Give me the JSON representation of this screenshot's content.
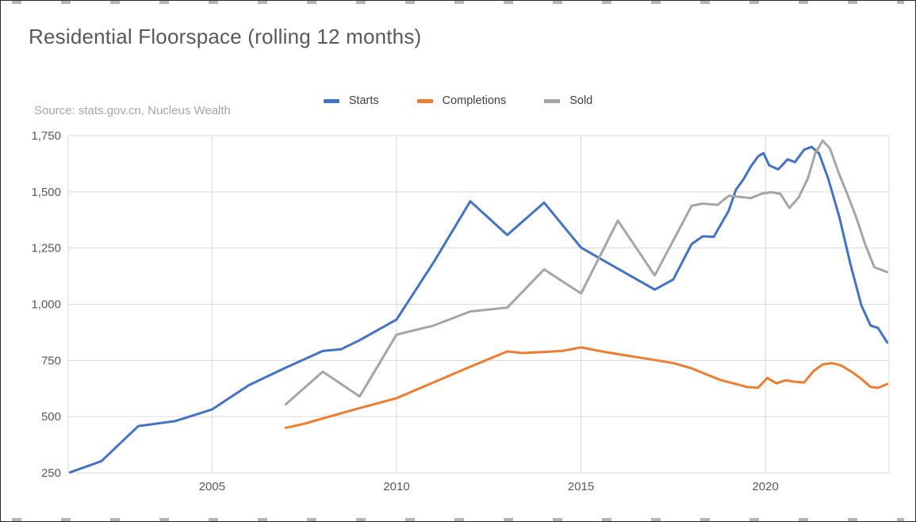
{
  "chart_data": {
    "type": "line",
    "title": "Residential Floorspace (rolling 12 months)",
    "source": "Source: stats.gov.cn, Nucleus Wealth",
    "legend_position": "top",
    "grid": true,
    "x_range": [
      2001.1,
      2023.35
    ],
    "y_range": [
      250,
      1750
    ],
    "x_ticks": [
      2005,
      2010,
      2015,
      2020
    ],
    "x_tick_labels": [
      "2005",
      "2010",
      "2015",
      "2020"
    ],
    "y_ticks": [
      250,
      500,
      750,
      1000,
      1250,
      1500,
      1750
    ],
    "y_tick_labels": [
      "250",
      "500",
      "750",
      "1,000",
      "1,250",
      "1,500",
      "1,750"
    ],
    "colors": {
      "gridline": "#d9d9d9",
      "axis_text": "#595959",
      "title_text": "#595959",
      "source_text": "#a6a6a6"
    },
    "series": [
      {
        "name": "Starts",
        "color": "#4472C4",
        "points": [
          [
            2001.15,
            252
          ],
          [
            2002,
            302
          ],
          [
            2003,
            458
          ],
          [
            2004,
            480
          ],
          [
            2005,
            532
          ],
          [
            2006,
            640
          ],
          [
            2007,
            718
          ],
          [
            2008,
            792
          ],
          [
            2008.5,
            800
          ],
          [
            2009,
            840
          ],
          [
            2010,
            932
          ],
          [
            2011,
            1185
          ],
          [
            2012,
            1458
          ],
          [
            2013,
            1308
          ],
          [
            2014,
            1452
          ],
          [
            2015,
            1252
          ],
          [
            2016,
            1158
          ],
          [
            2017,
            1065
          ],
          [
            2017.5,
            1110
          ],
          [
            2018,
            1268
          ],
          [
            2018.3,
            1302
          ],
          [
            2018.6,
            1300
          ],
          [
            2019,
            1415
          ],
          [
            2019.2,
            1510
          ],
          [
            2019.4,
            1555
          ],
          [
            2019.6,
            1612
          ],
          [
            2019.8,
            1658
          ],
          [
            2019.95,
            1672
          ],
          [
            2020.1,
            1618
          ],
          [
            2020.35,
            1600
          ],
          [
            2020.6,
            1645
          ],
          [
            2020.8,
            1632
          ],
          [
            2021.05,
            1688
          ],
          [
            2021.25,
            1700
          ],
          [
            2021.45,
            1672
          ],
          [
            2021.7,
            1560
          ],
          [
            2022,
            1390
          ],
          [
            2022.3,
            1180
          ],
          [
            2022.6,
            995
          ],
          [
            2022.85,
            905
          ],
          [
            2023.05,
            895
          ],
          [
            2023.3,
            830
          ]
        ]
      },
      {
        "name": "Completions",
        "color": "#ED7D31",
        "points": [
          [
            2007,
            450
          ],
          [
            2007.5,
            468
          ],
          [
            2008,
            492
          ],
          [
            2009,
            538
          ],
          [
            2010,
            582
          ],
          [
            2011,
            652
          ],
          [
            2012,
            722
          ],
          [
            2013,
            790
          ],
          [
            2013.4,
            783
          ],
          [
            2014,
            788
          ],
          [
            2014.5,
            792
          ],
          [
            2015,
            808
          ],
          [
            2015.5,
            792
          ],
          [
            2016,
            778
          ],
          [
            2017,
            752
          ],
          [
            2017.5,
            738
          ],
          [
            2018,
            715
          ],
          [
            2018.4,
            688
          ],
          [
            2018.8,
            662
          ],
          [
            2019.2,
            645
          ],
          [
            2019.5,
            632
          ],
          [
            2019.8,
            628
          ],
          [
            2020.05,
            672
          ],
          [
            2020.3,
            648
          ],
          [
            2020.55,
            662
          ],
          [
            2020.8,
            655
          ],
          [
            2021.05,
            652
          ],
          [
            2021.3,
            702
          ],
          [
            2021.55,
            732
          ],
          [
            2021.8,
            738
          ],
          [
            2022.05,
            728
          ],
          [
            2022.35,
            698
          ],
          [
            2022.6,
            668
          ],
          [
            2022.85,
            632
          ],
          [
            2023.05,
            628
          ],
          [
            2023.3,
            645
          ]
        ]
      },
      {
        "name": "Sold",
        "color": "#A5A5A5",
        "points": [
          [
            2007,
            555
          ],
          [
            2008,
            700
          ],
          [
            2009,
            590
          ],
          [
            2010,
            865
          ],
          [
            2011,
            905
          ],
          [
            2012,
            968
          ],
          [
            2013,
            985
          ],
          [
            2014,
            1155
          ],
          [
            2015,
            1048
          ],
          [
            2016,
            1372
          ],
          [
            2017,
            1128
          ],
          [
            2018,
            1438
          ],
          [
            2018.3,
            1448
          ],
          [
            2018.7,
            1442
          ],
          [
            2019,
            1482
          ],
          [
            2019.3,
            1478
          ],
          [
            2019.6,
            1472
          ],
          [
            2019.9,
            1492
          ],
          [
            2020.15,
            1498
          ],
          [
            2020.4,
            1492
          ],
          [
            2020.65,
            1428
          ],
          [
            2020.9,
            1475
          ],
          [
            2021.15,
            1560
          ],
          [
            2021.35,
            1672
          ],
          [
            2021.55,
            1728
          ],
          [
            2021.75,
            1692
          ],
          [
            2022,
            1578
          ],
          [
            2022.2,
            1498
          ],
          [
            2022.45,
            1392
          ],
          [
            2022.7,
            1268
          ],
          [
            2022.95,
            1165
          ],
          [
            2023.3,
            1143
          ]
        ]
      }
    ]
  }
}
